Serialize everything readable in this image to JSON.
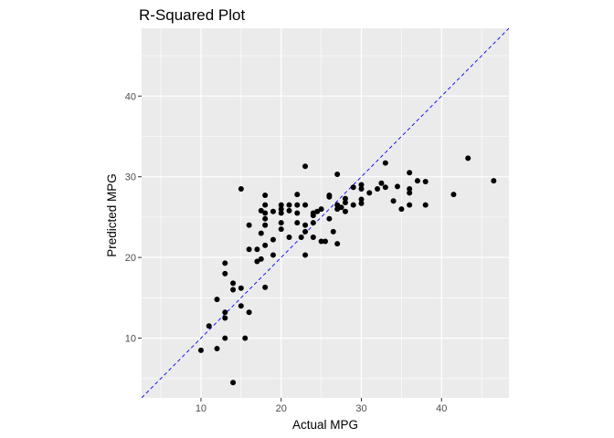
{
  "chart_data": {
    "type": "scatter",
    "title": "R-Squared Plot",
    "xlabel": "Actual MPG",
    "ylabel": "Predicted MPG",
    "xlim": [
      2.6,
      48.4
    ],
    "ylim": [
      2.6,
      48.4
    ],
    "x_ticks": [
      10,
      20,
      30,
      40
    ],
    "y_ticks": [
      10,
      20,
      30,
      40
    ],
    "x_tick_labels": [
      "10",
      "20",
      "30",
      "40"
    ],
    "y_tick_labels": [
      "10",
      "20",
      "30",
      "40"
    ],
    "grid": true,
    "background": "#ebebeb",
    "point_color": "#000000",
    "reference_line": {
      "type": "identity",
      "slope": 1,
      "intercept": 0,
      "style": "dashed",
      "color": "#0000ff"
    },
    "points": [
      [
        10,
        8.5
      ],
      [
        11,
        11.5
      ],
      [
        12,
        8.7
      ],
      [
        12,
        14.8
      ],
      [
        13,
        10
      ],
      [
        13,
        12.5
      ],
      [
        13,
        13.2
      ],
      [
        13,
        18
      ],
      [
        13,
        19.3
      ],
      [
        14,
        4.5
      ],
      [
        14,
        16
      ],
      [
        14,
        16.8
      ],
      [
        15,
        14
      ],
      [
        15,
        16.2
      ],
      [
        15,
        28.5
      ],
      [
        15.5,
        10
      ],
      [
        16,
        13.2
      ],
      [
        16,
        21
      ],
      [
        16,
        24
      ],
      [
        17,
        19.5
      ],
      [
        17,
        21
      ],
      [
        17.5,
        19.8
      ],
      [
        17.5,
        23
      ],
      [
        17.5,
        25.8
      ],
      [
        18,
        16.3
      ],
      [
        18,
        21.5
      ],
      [
        18,
        24
      ],
      [
        18,
        24.8
      ],
      [
        18,
        25.5
      ],
      [
        18,
        26.5
      ],
      [
        18,
        27.7
      ],
      [
        19,
        20.3
      ],
      [
        19,
        22.2
      ],
      [
        19,
        25.7
      ],
      [
        20,
        23.5
      ],
      [
        20,
        24.3
      ],
      [
        20,
        25.5
      ],
      [
        20,
        26
      ],
      [
        20,
        26.5
      ],
      [
        21,
        22.5
      ],
      [
        21,
        25.8
      ],
      [
        21,
        26.5
      ],
      [
        22,
        24.3
      ],
      [
        22,
        25.5
      ],
      [
        22,
        26.5
      ],
      [
        22,
        27.8
      ],
      [
        22.5,
        22.5
      ],
      [
        23,
        20.3
      ],
      [
        23,
        23.2
      ],
      [
        23,
        24
      ],
      [
        23,
        26.5
      ],
      [
        23,
        31.3
      ],
      [
        24,
        22.5
      ],
      [
        24,
        24.3
      ],
      [
        24,
        25.2
      ],
      [
        24,
        25.5
      ],
      [
        24.5,
        25.7
      ],
      [
        25,
        22
      ],
      [
        25,
        26
      ],
      [
        25.5,
        22
      ],
      [
        26,
        24.8
      ],
      [
        26,
        27.5
      ],
      [
        26,
        27.7
      ],
      [
        26.5,
        23.2
      ],
      [
        27,
        21.7
      ],
      [
        27,
        26
      ],
      [
        27,
        26.5
      ],
      [
        27,
        30.3
      ],
      [
        27.5,
        26.2
      ],
      [
        28,
        25.7
      ],
      [
        28,
        26.8
      ],
      [
        28,
        27.3
      ],
      [
        29,
        26.5
      ],
      [
        29,
        28.7
      ],
      [
        30,
        26.7
      ],
      [
        30,
        27.2
      ],
      [
        30,
        28.5
      ],
      [
        30,
        29
      ],
      [
        31,
        28
      ],
      [
        32,
        28.5
      ],
      [
        32.5,
        29.2
      ],
      [
        33,
        28.7
      ],
      [
        33,
        31.7
      ],
      [
        34,
        27
      ],
      [
        34.5,
        28.8
      ],
      [
        35,
        26
      ],
      [
        36,
        26.5
      ],
      [
        36,
        28
      ],
      [
        36,
        28.5
      ],
      [
        36,
        30.5
      ],
      [
        37,
        29.5
      ],
      [
        38,
        26.5
      ],
      [
        38,
        29.4
      ],
      [
        41.5,
        27.8
      ],
      [
        43.3,
        32.3
      ],
      [
        46.5,
        29.5
      ]
    ]
  }
}
